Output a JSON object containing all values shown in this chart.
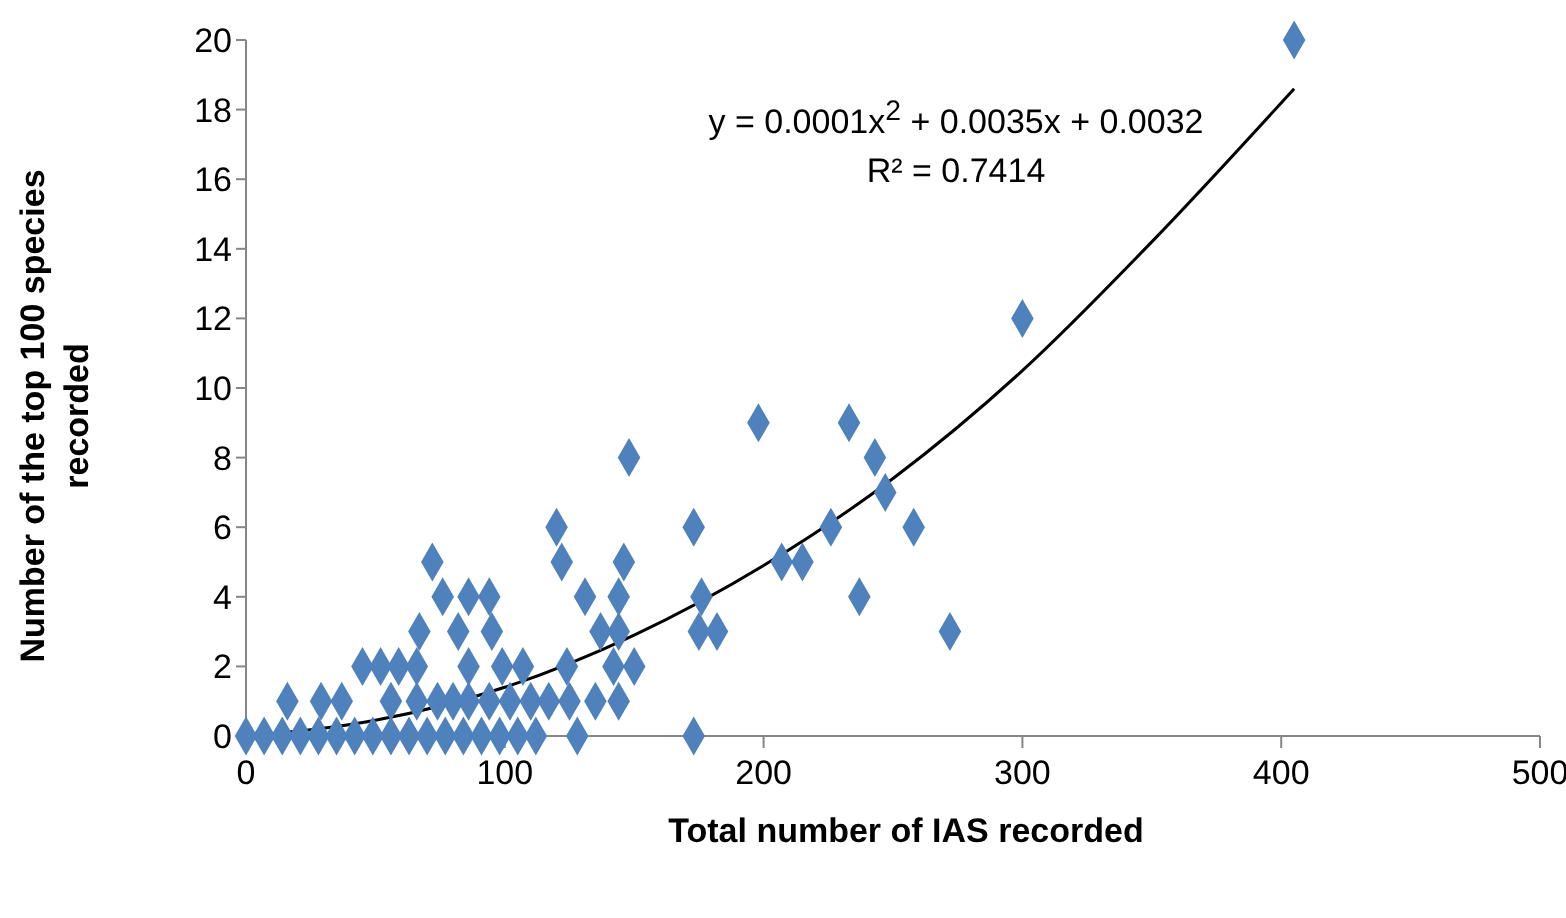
{
  "chart_data": {
    "type": "scatter",
    "xlabel": "Total number of IAS recorded",
    "ylabel": "Number of the top 100 species recorded",
    "xlim": [
      0,
      500
    ],
    "xticks": [
      0,
      100,
      200,
      300,
      400,
      500
    ],
    "ylim": [
      0,
      20
    ],
    "yticks": [
      0,
      2,
      4,
      6,
      8,
      10,
      12,
      14,
      16,
      18,
      20
    ],
    "grid": false,
    "legend": false,
    "marker": "diamond",
    "annotations": [
      "y = 0.0001x$^{2}$ + 0.0035x + 0.0032",
      "R² = 0.7414"
    ],
    "series": [
      {
        "color": "#4f81bd",
        "x": [
          0,
          7,
          14,
          21,
          28,
          35,
          42,
          49,
          56,
          63,
          70,
          77,
          84,
          91,
          98,
          105,
          112,
          128,
          173,
          16,
          29,
          37,
          56,
          66,
          74,
          80,
          86,
          94,
          102,
          110,
          117,
          125,
          135,
          144,
          45,
          52,
          59,
          66,
          86,
          99,
          107,
          124,
          142,
          150,
          67,
          82,
          95,
          137,
          144,
          175,
          182,
          272,
          76,
          86,
          94,
          131,
          144,
          176,
          237,
          72,
          122,
          146,
          207,
          215,
          120,
          173,
          226,
          258,
          148,
          243,
          247,
          198,
          233,
          300,
          405
        ],
        "values": [
          0,
          0,
          0,
          0,
          0,
          0,
          0,
          0,
          0,
          0,
          0,
          0,
          0,
          0,
          0,
          0,
          0,
          0,
          0,
          1,
          1,
          1,
          1,
          1,
          1,
          1,
          1,
          1,
          1,
          1,
          1,
          1,
          1,
          1,
          2,
          2,
          2,
          2,
          2,
          2,
          2,
          2,
          2,
          2,
          3,
          3,
          3,
          3,
          3,
          3,
          3,
          3,
          4,
          4,
          4,
          4,
          4,
          4,
          4,
          5,
          5,
          5,
          5,
          5,
          6,
          6,
          6,
          6,
          8,
          8,
          7,
          9,
          9,
          12,
          20
        ]
      },
      {
        "type": "line",
        "color": "#000000",
        "marker": "none",
        "x": [
          0,
          50,
          100,
          150,
          200,
          250,
          300,
          350,
          405
        ],
        "values": [
          0,
          0.45,
          1.4,
          2.9,
          4.9,
          7.4,
          10.5,
          14.2,
          18.6
        ]
      }
    ]
  }
}
